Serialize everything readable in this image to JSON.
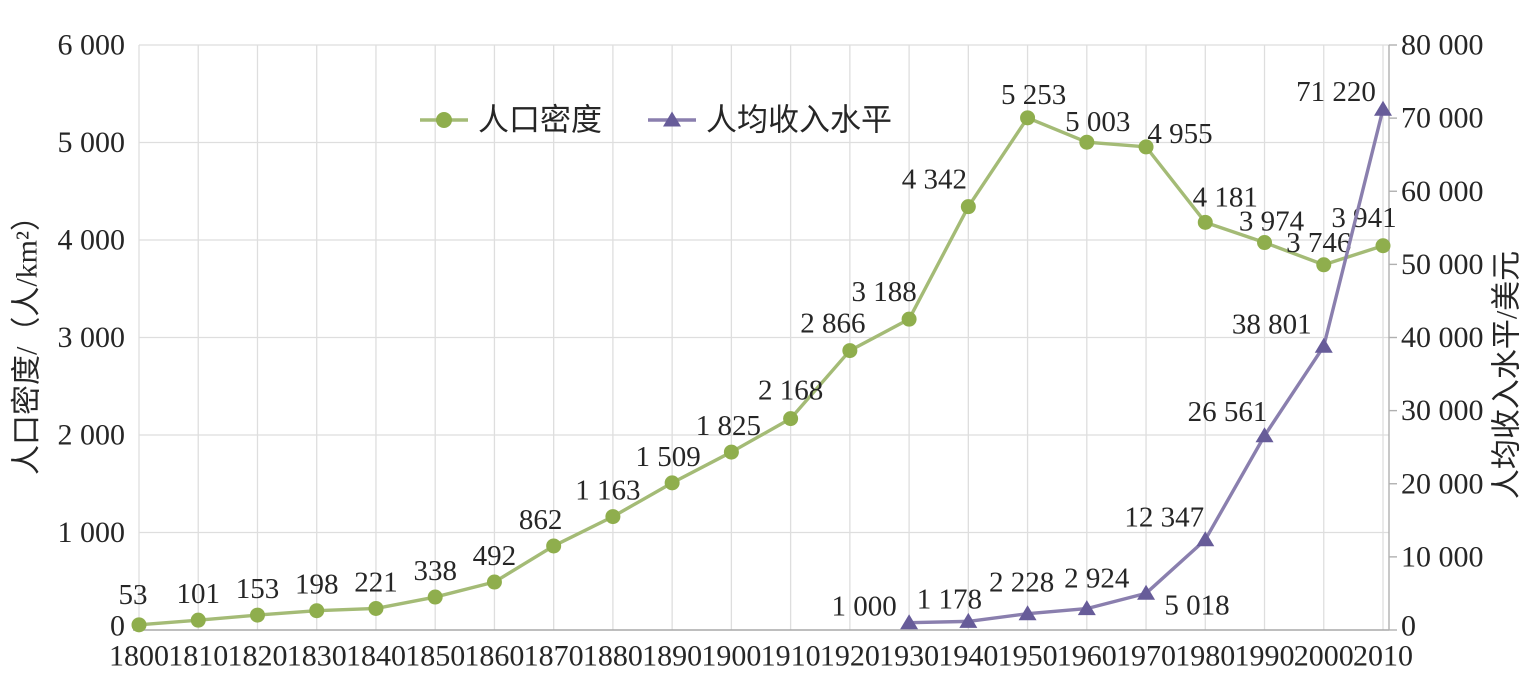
{
  "chart_data": {
    "type": "line",
    "title": "",
    "legend_position": "top-center-inside",
    "grid": true,
    "x_tick_labels": [
      "1800",
      "1810",
      "1820",
      "1830",
      "1840",
      "1850",
      "1860",
      "1870",
      "1880",
      "1890",
      "1900",
      "1910",
      "1920",
      "1930",
      "1940",
      "1950",
      "1960",
      "1970",
      "1980",
      "1990",
      "2000",
      "2010"
    ],
    "x_range": [
      1800,
      2010
    ],
    "left_axis": {
      "label": "人口密度/（人/km²）",
      "min": 0,
      "max": 6000,
      "step": 1000,
      "tick_labels": [
        "0",
        "1 000",
        "2 000",
        "3 000",
        "4 000",
        "5 000",
        "6 000"
      ]
    },
    "right_axis": {
      "label": "人均收入水平/美元",
      "min": 0,
      "max": 80000,
      "step": 10000,
      "tick_labels": [
        "0",
        "10 000",
        "20 000",
        "30 000",
        "40 000",
        "50 000",
        "60 000",
        "70 000",
        "80 000"
      ]
    },
    "series": [
      {
        "name": "人口密度",
        "axis": "left",
        "marker": "circle",
        "line_color": "#a4bb76",
        "marker_color": "#8fae4d",
        "years": [
          1800,
          1810,
          1820,
          1830,
          1840,
          1850,
          1860,
          1870,
          1880,
          1890,
          1900,
          1910,
          1920,
          1930,
          1940,
          1950,
          1960,
          1970,
          1980,
          1990,
          2000,
          2010
        ],
        "values": [
          53,
          101,
          153,
          198,
          221,
          338,
          492,
          862,
          1163,
          1509,
          1825,
          2168,
          2866,
          3188,
          4342,
          5253,
          5003,
          4955,
          4181,
          3974,
          3746,
          3941
        ],
        "labels": [
          "53",
          "101",
          "153",
          "198",
          "221",
          "338",
          "492",
          "862",
          "1 163",
          "1 509",
          "1 825",
          "2 168",
          "2 866",
          "3 188",
          "4 342",
          "5 253",
          "5 003",
          "4 955",
          "4 181",
          "3 974",
          "3 746",
          "3 941"
        ],
        "label_dx": [
          -6,
          0,
          0,
          0,
          0,
          0,
          0,
          -13,
          -5,
          -4,
          -3,
          0,
          -17,
          -25,
          -34,
          6,
          11,
          34,
          20,
          7,
          -5,
          -19
        ],
        "label_dy": [
          -30,
          -26,
          -26,
          -26,
          -26,
          -26,
          -26,
          -26,
          -26,
          -26,
          -26,
          -28,
          -27,
          -27,
          -27,
          -23,
          -20,
          -13,
          -25,
          -21,
          -22,
          -28
        ]
      },
      {
        "name": "人均收入水平",
        "axis": "right",
        "marker": "triangle",
        "line_color": "#8a7fae",
        "marker_color": "#675c99",
        "years": [
          1930,
          1940,
          1950,
          1960,
          1970,
          1980,
          1990,
          2000,
          2010
        ],
        "values": [
          1000,
          1178,
          2228,
          2924,
          5018,
          12347,
          26561,
          38801,
          71220
        ],
        "labels": [
          "1 000",
          "1 178",
          "2 228",
          "2 924",
          "5 018",
          "12 347",
          "26 561",
          "38 801",
          "71 220"
        ],
        "label_dx": [
          -45,
          -19,
          -6,
          10,
          51,
          -41,
          -37,
          -52,
          -47
        ],
        "label_dy": [
          -16,
          -22,
          -31,
          -30,
          12,
          -22,
          -24,
          -22,
          -17
        ]
      }
    ],
    "colors": {
      "grid": "#dedede",
      "axis_line": "#b0b0b0",
      "x_axis_line": "#a8a8a8",
      "text": "#262626"
    }
  }
}
